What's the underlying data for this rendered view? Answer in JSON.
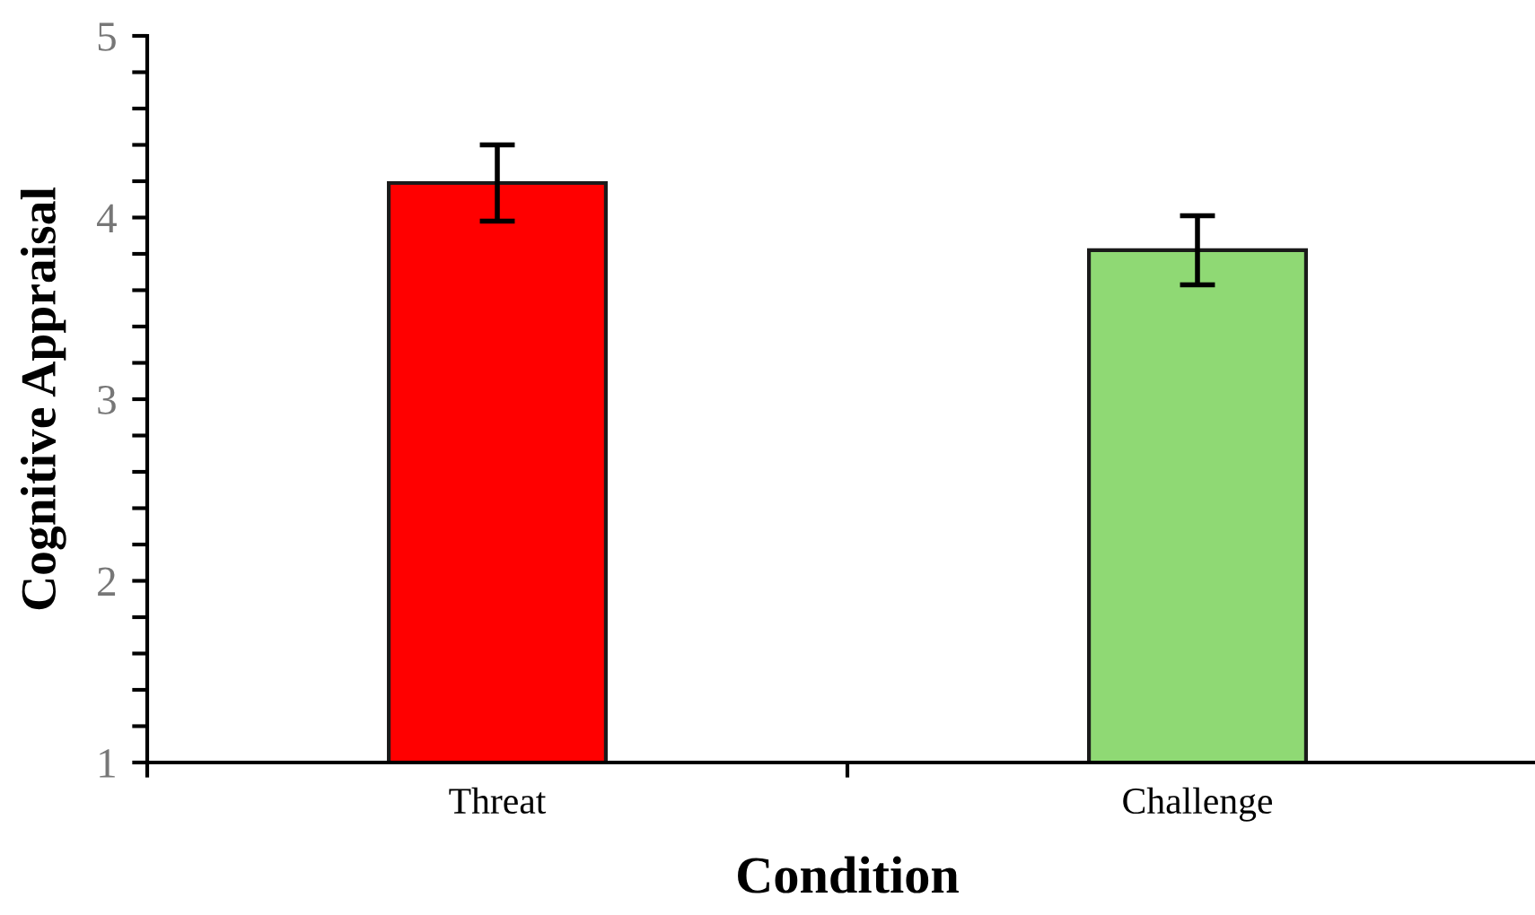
{
  "chart_data": {
    "type": "bar",
    "xlabel": "Condition",
    "ylabel": "Cognitive Appraisal",
    "categories": [
      "Threat",
      "Challenge"
    ],
    "values": [
      4.19,
      3.82
    ],
    "colors": [
      "#ff0000",
      "#8fd974"
    ],
    "errors": [
      0.21,
      0.19
    ],
    "ylim": [
      1,
      5
    ],
    "yticks": [
      1,
      {
        "value": 1.2,
        "label": null
      },
      {
        "value": 1.4,
        "label": null
      },
      {
        "value": 1.6,
        "label": null
      },
      {
        "value": 1.8,
        "label": null
      },
      2,
      {
        "value": 2.2,
        "label": null
      },
      {
        "value": 2.4,
        "label": null
      },
      {
        "value": 2.6,
        "label": null
      },
      {
        "value": 2.8,
        "label": null
      },
      3,
      {
        "value": 3.2,
        "label": null
      },
      {
        "value": 3.4,
        "label": null
      },
      {
        "value": 3.6,
        "label": null
      },
      {
        "value": 3.8,
        "label": null
      },
      4,
      {
        "value": 4.2,
        "label": null
      },
      {
        "value": 4.4,
        "label": null
      },
      {
        "value": 4.6,
        "label": null
      },
      {
        "value": 4.8,
        "label": null
      },
      5
    ],
    "grid": false
  }
}
